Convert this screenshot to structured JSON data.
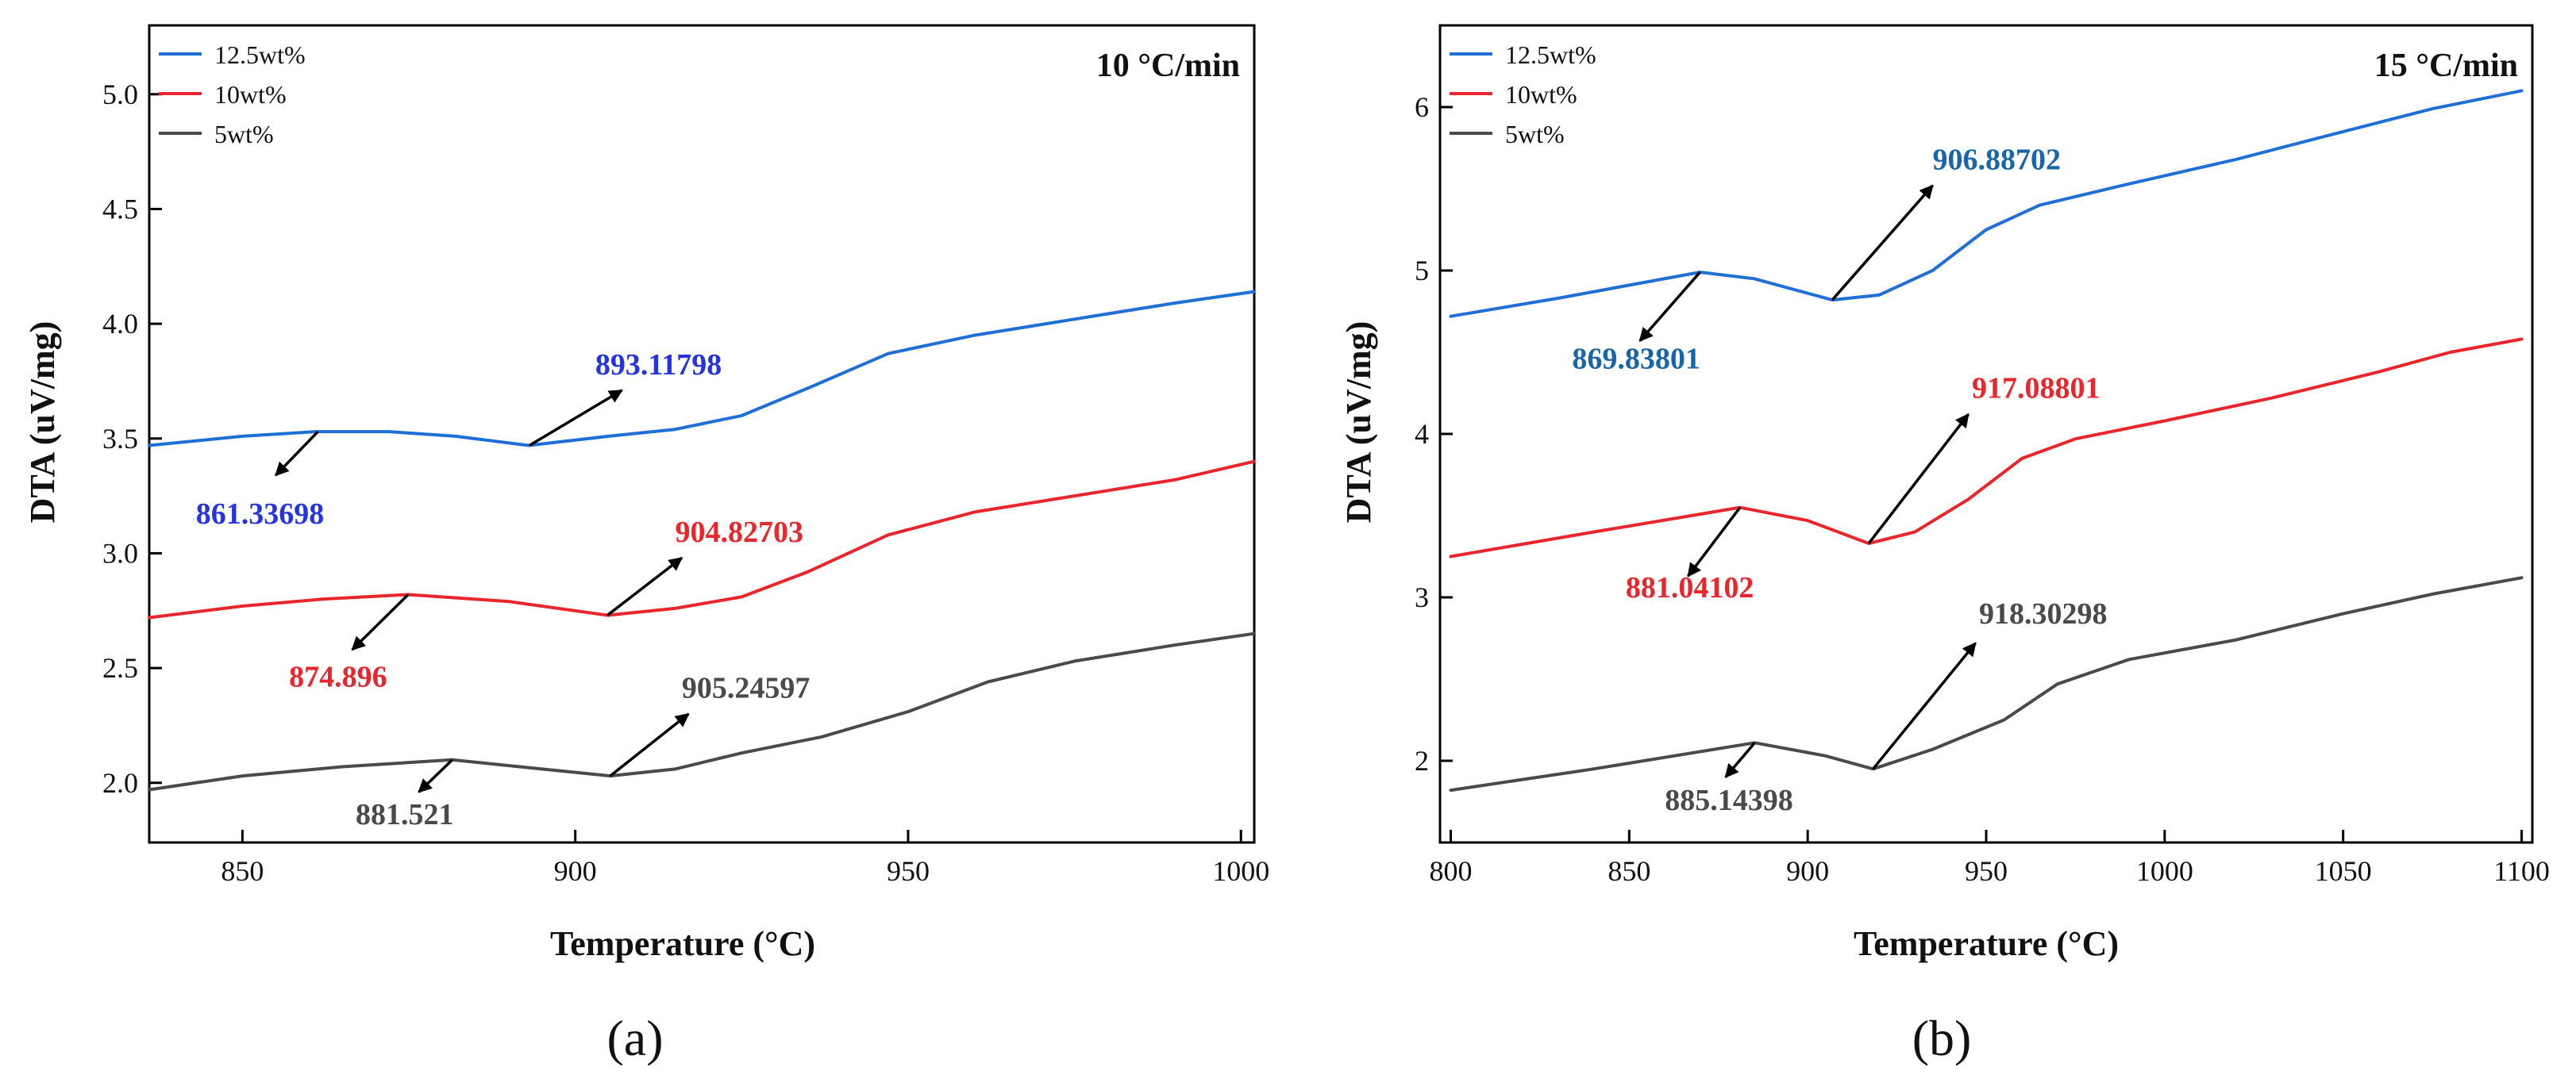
{
  "chart_data": [
    {
      "type": "line",
      "panel_label": "(a)",
      "heating_rate_label": "10 °C/min",
      "xlabel": "Temperature (°C)",
      "ylabel": "DTA (uV/mg)",
      "xlim": [
        836,
        1002
      ],
      "ylim": [
        1.74,
        5.3
      ],
      "xticks": [
        850,
        900,
        950,
        1000
      ],
      "yticks": [
        2.0,
        2.5,
        3.0,
        3.5,
        4.0,
        4.5,
        5.0
      ],
      "legend_position": "top-left",
      "series": [
        {
          "name": "12.5wt%",
          "color": "#1f6fd6",
          "x": [
            836,
            850,
            861,
            872,
            882,
            893,
            905,
            915,
            925,
            935,
            947,
            960,
            975,
            990,
            1002
          ],
          "y": [
            3.47,
            3.51,
            3.53,
            3.53,
            3.51,
            3.47,
            3.51,
            3.54,
            3.6,
            3.72,
            3.87,
            3.95,
            4.02,
            4.09,
            4.14
          ]
        },
        {
          "name": "10wt%",
          "color": "#e8262b",
          "x": [
            836,
            850,
            862,
            874.896,
            890,
            904.82703,
            915,
            925,
            935,
            947,
            960,
            975,
            990,
            1002
          ],
          "y": [
            2.72,
            2.77,
            2.8,
            2.82,
            2.79,
            2.73,
            2.76,
            2.81,
            2.92,
            3.08,
            3.18,
            3.25,
            3.32,
            3.4
          ]
        },
        {
          "name": "5wt%",
          "color": "#4a4a4a",
          "x": [
            836,
            850,
            865,
            881.521,
            895,
            905.24597,
            915,
            925,
            937,
            950,
            962,
            975,
            990,
            1002
          ],
          "y": [
            1.97,
            2.03,
            2.07,
            2.1,
            2.06,
            2.03,
            2.06,
            2.13,
            2.2,
            2.31,
            2.44,
            2.53,
            2.6,
            2.65
          ]
        }
      ],
      "annotations": [
        {
          "text": "861.33698",
          "color": "#2633e0",
          "point": [
            861.33698,
            3.53
          ],
          "arrow_to": [
            855,
            3.34
          ],
          "label_at": [
            843,
            3.13
          ]
        },
        {
          "text": "893.11798",
          "color": "#2633e0",
          "point": [
            893.11798,
            3.47
          ],
          "arrow_to": [
            907,
            3.71
          ],
          "label_at": [
            903,
            3.78
          ]
        },
        {
          "text": "874.896",
          "color": "#e8262b",
          "point": [
            874.896,
            2.82
          ],
          "arrow_to": [
            866.5,
            2.58
          ],
          "label_at": [
            857,
            2.42
          ]
        },
        {
          "text": "904.82703",
          "color": "#e8262b",
          "point": [
            904.82703,
            2.73
          ],
          "arrow_to": [
            916,
            2.98
          ],
          "label_at": [
            915,
            3.05
          ]
        },
        {
          "text": "881.521",
          "color": "#4a4a4a",
          "point": [
            881.521,
            2.1
          ],
          "arrow_to": [
            876.5,
            1.96
          ],
          "label_at": [
            867,
            1.82
          ]
        },
        {
          "text": "905.24597",
          "color": "#4a4a4a",
          "point": [
            905.24597,
            2.03
          ],
          "arrow_to": [
            917,
            2.3
          ],
          "label_at": [
            916,
            2.37
          ]
        }
      ]
    },
    {
      "type": "line",
      "panel_label": "(b)",
      "heating_rate_label": "15 °C/min",
      "xlabel": "Temperature (°C)",
      "ylabel": "DTA (uV/mg)",
      "xlim": [
        797,
        1103
      ],
      "ylim": [
        1.5,
        6.5
      ],
      "xticks": [
        800,
        850,
        900,
        950,
        1000,
        1050,
        1100
      ],
      "yticks": [
        2,
        3,
        4,
        5,
        6
      ],
      "legend_position": "top-left",
      "series": [
        {
          "name": "12.5wt%",
          "color": "#1f6fd6",
          "x": [
            800,
            830,
            869.83801,
            885,
            906.88702,
            920,
            935,
            950,
            965,
            990,
            1020,
            1050,
            1075,
            1100
          ],
          "y": [
            4.72,
            4.83,
            4.99,
            4.95,
            4.82,
            4.85,
            5.0,
            5.25,
            5.4,
            5.53,
            5.68,
            5.85,
            5.99,
            6.1
          ]
        },
        {
          "name": "10wt%",
          "color": "#e8262b",
          "x": [
            800,
            840,
            881.04102,
            900,
            917.08801,
            930,
            945,
            960,
            975,
            1000,
            1030,
            1060,
            1080,
            1100
          ],
          "y": [
            3.25,
            3.4,
            3.55,
            3.47,
            3.33,
            3.4,
            3.6,
            3.85,
            3.97,
            4.08,
            4.22,
            4.38,
            4.5,
            4.58
          ]
        },
        {
          "name": "5wt%",
          "color": "#4a4a4a",
          "x": [
            800,
            840,
            885.14398,
            905,
            918.30298,
            935,
            955,
            970,
            990,
            1020,
            1050,
            1075,
            1100
          ],
          "y": [
            1.82,
            1.95,
            2.11,
            2.03,
            1.95,
            2.07,
            2.25,
            2.47,
            2.62,
            2.74,
            2.9,
            3.02,
            3.12
          ]
        }
      ],
      "annotations": [
        {
          "text": "869.83801",
          "color": "#1a64a8",
          "point": [
            869.83801,
            4.99
          ],
          "arrow_to": [
            853,
            4.57
          ],
          "label_at": [
            834,
            4.4
          ]
        },
        {
          "text": "906.88702",
          "color": "#1a64a8",
          "point": [
            906.88702,
            4.82
          ],
          "arrow_to": [
            935,
            5.52
          ],
          "label_at": [
            935,
            5.62
          ]
        },
        {
          "text": "881.04102",
          "color": "#e8262b",
          "point": [
            881.04102,
            3.55
          ],
          "arrow_to": [
            866.5,
            3.13
          ],
          "label_at": [
            849,
            3.0
          ]
        },
        {
          "text": "917.08801",
          "color": "#e8262b",
          "point": [
            917.08801,
            3.33
          ],
          "arrow_to": [
            945,
            4.12
          ],
          "label_at": [
            946,
            4.22
          ]
        },
        {
          "text": "885.14398",
          "color": "#4a4a4a",
          "point": [
            885.14398,
            2.11
          ],
          "arrow_to": [
            877,
            1.9
          ],
          "label_at": [
            860,
            1.7
          ]
        },
        {
          "text": "918.30298",
          "color": "#4a4a4a",
          "point": [
            918.30298,
            1.95
          ],
          "arrow_to": [
            947,
            2.72
          ],
          "label_at": [
            948,
            2.84
          ]
        }
      ]
    }
  ]
}
